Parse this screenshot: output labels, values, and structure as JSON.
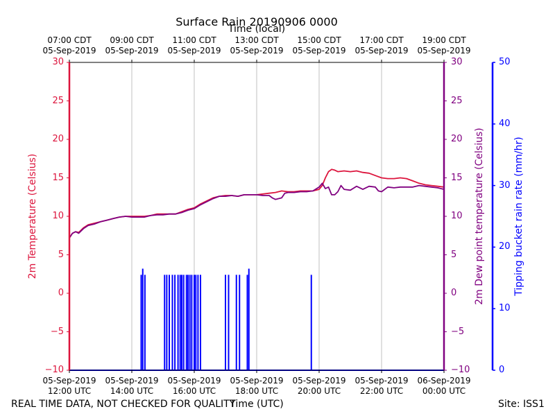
{
  "chart_data": {
    "type": "line",
    "title": "Surface Rain 20190906 0000",
    "top_xlabel": "Time (local)",
    "xlabel": "Time (UTC)",
    "footer_left": "REAL TIME DATA, NOT CHECKED FOR QUALITY",
    "footer_right": "Site: ISS1",
    "x_range_utc_hours": [
      12,
      24
    ],
    "bottom_ticks": [
      {
        "x": 12,
        "line1": "05-Sep-2019",
        "line2": "12:00 UTC"
      },
      {
        "x": 14,
        "line1": "05-Sep-2019",
        "line2": "14:00 UTC"
      },
      {
        "x": 16,
        "line1": "05-Sep-2019",
        "line2": "16:00 UTC"
      },
      {
        "x": 18,
        "line1": "05-Sep-2019",
        "line2": "18:00 UTC"
      },
      {
        "x": 20,
        "line1": "05-Sep-2019",
        "line2": "20:00 UTC"
      },
      {
        "x": 22,
        "line1": "05-Sep-2019",
        "line2": "22:00 UTC"
      },
      {
        "x": 24,
        "line1": "06-Sep-2019",
        "line2": "00:00 UTC"
      }
    ],
    "top_ticks": [
      {
        "x": 12,
        "line1": "07:00 CDT",
        "line2": "05-Sep-2019"
      },
      {
        "x": 14,
        "line1": "09:00 CDT",
        "line2": "05-Sep-2019"
      },
      {
        "x": 16,
        "line1": "11:00 CDT",
        "line2": "05-Sep-2019"
      },
      {
        "x": 18,
        "line1": "13:00 CDT",
        "line2": "05-Sep-2019"
      },
      {
        "x": 20,
        "line1": "15:00 CDT",
        "line2": "05-Sep-2019"
      },
      {
        "x": 22,
        "line1": "17:00 CDT",
        "line2": "05-Sep-2019"
      },
      {
        "x": 24,
        "line1": "19:00 CDT",
        "line2": "05-Sep-2019"
      }
    ],
    "vertical_grid_x": [
      14,
      16,
      18,
      20,
      22
    ],
    "left_axis": {
      "label": "2m Temperature (Celsius)",
      "range": [
        -10,
        30
      ],
      "ticks": [
        -10,
        -5,
        0,
        5,
        10,
        15,
        20,
        25,
        30
      ],
      "color": "#dc143c"
    },
    "right_axis": {
      "label": "2m Dew point temperature (Celsius)",
      "range": [
        -10,
        30
      ],
      "ticks": [
        -10,
        -5,
        0,
        5,
        10,
        15,
        20,
        25,
        30
      ],
      "color": "#800080"
    },
    "rain_axis": {
      "label": "Tipping bucket rain rate (mm/hr)",
      "range": [
        0,
        50
      ],
      "ticks": [
        0,
        10,
        20,
        30,
        40,
        50
      ],
      "color": "#0000ff"
    },
    "series": [
      {
        "name": "2m Temperature",
        "axis": "left",
        "color": "#dc143c",
        "points": [
          [
            12.0,
            7.2
          ],
          [
            12.1,
            7.8
          ],
          [
            12.2,
            8.0
          ],
          [
            12.3,
            7.9
          ],
          [
            12.45,
            8.5
          ],
          [
            12.6,
            8.9
          ],
          [
            12.8,
            9.1
          ],
          [
            13.0,
            9.3
          ],
          [
            13.2,
            9.5
          ],
          [
            13.4,
            9.7
          ],
          [
            13.6,
            9.9
          ],
          [
            13.8,
            10.0
          ],
          [
            14.0,
            10.0
          ],
          [
            14.2,
            10.0
          ],
          [
            14.4,
            10.0
          ],
          [
            14.6,
            10.1
          ],
          [
            14.8,
            10.3
          ],
          [
            15.0,
            10.3
          ],
          [
            15.2,
            10.3
          ],
          [
            15.4,
            10.3
          ],
          [
            15.6,
            10.6
          ],
          [
            15.8,
            10.9
          ],
          [
            16.0,
            11.1
          ],
          [
            16.2,
            11.6
          ],
          [
            16.4,
            12.0
          ],
          [
            16.6,
            12.4
          ],
          [
            16.8,
            12.6
          ],
          [
            17.0,
            12.7
          ],
          [
            17.2,
            12.7
          ],
          [
            17.4,
            12.6
          ],
          [
            17.6,
            12.8
          ],
          [
            17.8,
            12.8
          ],
          [
            18.0,
            12.8
          ],
          [
            18.2,
            12.9
          ],
          [
            18.4,
            13.0
          ],
          [
            18.6,
            13.1
          ],
          [
            18.8,
            13.3
          ],
          [
            19.0,
            13.2
          ],
          [
            19.2,
            13.2
          ],
          [
            19.4,
            13.3
          ],
          [
            19.6,
            13.3
          ],
          [
            19.8,
            13.3
          ],
          [
            20.0,
            13.5
          ],
          [
            20.1,
            14.0
          ],
          [
            20.2,
            15.0
          ],
          [
            20.3,
            15.8
          ],
          [
            20.4,
            16.1
          ],
          [
            20.5,
            16.0
          ],
          [
            20.6,
            15.8
          ],
          [
            20.8,
            15.9
          ],
          [
            21.0,
            15.8
          ],
          [
            21.2,
            15.9
          ],
          [
            21.4,
            15.7
          ],
          [
            21.6,
            15.6
          ],
          [
            21.8,
            15.3
          ],
          [
            22.0,
            15.0
          ],
          [
            22.2,
            14.9
          ],
          [
            22.4,
            14.9
          ],
          [
            22.6,
            15.0
          ],
          [
            22.8,
            14.9
          ],
          [
            23.0,
            14.6
          ],
          [
            23.2,
            14.3
          ],
          [
            23.4,
            14.1
          ],
          [
            23.6,
            14.0
          ],
          [
            23.8,
            13.9
          ],
          [
            24.0,
            13.8
          ]
        ]
      },
      {
        "name": "2m Dew point temperature",
        "axis": "right",
        "color": "#800080",
        "points": [
          [
            12.0,
            7.2
          ],
          [
            12.1,
            7.8
          ],
          [
            12.2,
            8.0
          ],
          [
            12.3,
            7.8
          ],
          [
            12.45,
            8.4
          ],
          [
            12.6,
            8.8
          ],
          [
            12.8,
            9.0
          ],
          [
            13.0,
            9.3
          ],
          [
            13.2,
            9.5
          ],
          [
            13.4,
            9.7
          ],
          [
            13.6,
            9.9
          ],
          [
            13.8,
            10.0
          ],
          [
            14.0,
            9.9
          ],
          [
            14.2,
            9.9
          ],
          [
            14.4,
            9.9
          ],
          [
            14.6,
            10.1
          ],
          [
            14.8,
            10.2
          ],
          [
            15.0,
            10.2
          ],
          [
            15.2,
            10.3
          ],
          [
            15.4,
            10.3
          ],
          [
            15.6,
            10.5
          ],
          [
            15.8,
            10.8
          ],
          [
            16.0,
            11.0
          ],
          [
            16.2,
            11.5
          ],
          [
            16.4,
            11.9
          ],
          [
            16.6,
            12.3
          ],
          [
            16.8,
            12.6
          ],
          [
            17.0,
            12.6
          ],
          [
            17.2,
            12.7
          ],
          [
            17.4,
            12.6
          ],
          [
            17.6,
            12.8
          ],
          [
            17.8,
            12.8
          ],
          [
            18.0,
            12.8
          ],
          [
            18.2,
            12.7
          ],
          [
            18.4,
            12.7
          ],
          [
            18.5,
            12.4
          ],
          [
            18.6,
            12.2
          ],
          [
            18.8,
            12.4
          ],
          [
            18.9,
            13.0
          ],
          [
            19.0,
            13.1
          ],
          [
            19.2,
            13.1
          ],
          [
            19.4,
            13.2
          ],
          [
            19.6,
            13.2
          ],
          [
            19.8,
            13.3
          ],
          [
            20.0,
            13.8
          ],
          [
            20.1,
            14.3
          ],
          [
            20.2,
            13.6
          ],
          [
            20.3,
            13.8
          ],
          [
            20.4,
            12.8
          ],
          [
            20.5,
            12.8
          ],
          [
            20.6,
            13.2
          ],
          [
            20.7,
            14.0
          ],
          [
            20.8,
            13.5
          ],
          [
            21.0,
            13.4
          ],
          [
            21.2,
            13.9
          ],
          [
            21.4,
            13.5
          ],
          [
            21.6,
            13.9
          ],
          [
            21.8,
            13.8
          ],
          [
            21.9,
            13.3
          ],
          [
            22.0,
            13.2
          ],
          [
            22.2,
            13.8
          ],
          [
            22.4,
            13.7
          ],
          [
            22.6,
            13.8
          ],
          [
            22.8,
            13.8
          ],
          [
            23.0,
            13.8
          ],
          [
            23.2,
            14.0
          ],
          [
            23.4,
            13.9
          ],
          [
            23.6,
            13.8
          ],
          [
            23.8,
            13.7
          ],
          [
            24.0,
            13.5
          ]
        ]
      },
      {
        "name": "Tipping bucket rain rate",
        "axis": "rain",
        "color": "#0000ff",
        "spikes": [
          [
            14.3,
            15.5
          ],
          [
            14.35,
            16.5
          ],
          [
            14.42,
            15.5
          ],
          [
            15.05,
            15.5
          ],
          [
            15.12,
            15.5
          ],
          [
            15.2,
            15.5
          ],
          [
            15.3,
            15.5
          ],
          [
            15.38,
            15.5
          ],
          [
            15.48,
            15.5
          ],
          [
            15.55,
            15.5
          ],
          [
            15.6,
            15.5
          ],
          [
            15.66,
            15.5
          ],
          [
            15.75,
            15.5
          ],
          [
            15.8,
            15.5
          ],
          [
            15.86,
            15.5
          ],
          [
            15.92,
            15.5
          ],
          [
            16.0,
            15.5
          ],
          [
            16.05,
            15.5
          ],
          [
            16.12,
            15.5
          ],
          [
            16.2,
            15.5
          ],
          [
            17.0,
            15.5
          ],
          [
            17.1,
            15.5
          ],
          [
            17.35,
            15.5
          ],
          [
            17.45,
            15.5
          ],
          [
            17.7,
            15.5
          ],
          [
            17.75,
            16.5
          ],
          [
            19.75,
            15.5
          ]
        ]
      }
    ]
  }
}
